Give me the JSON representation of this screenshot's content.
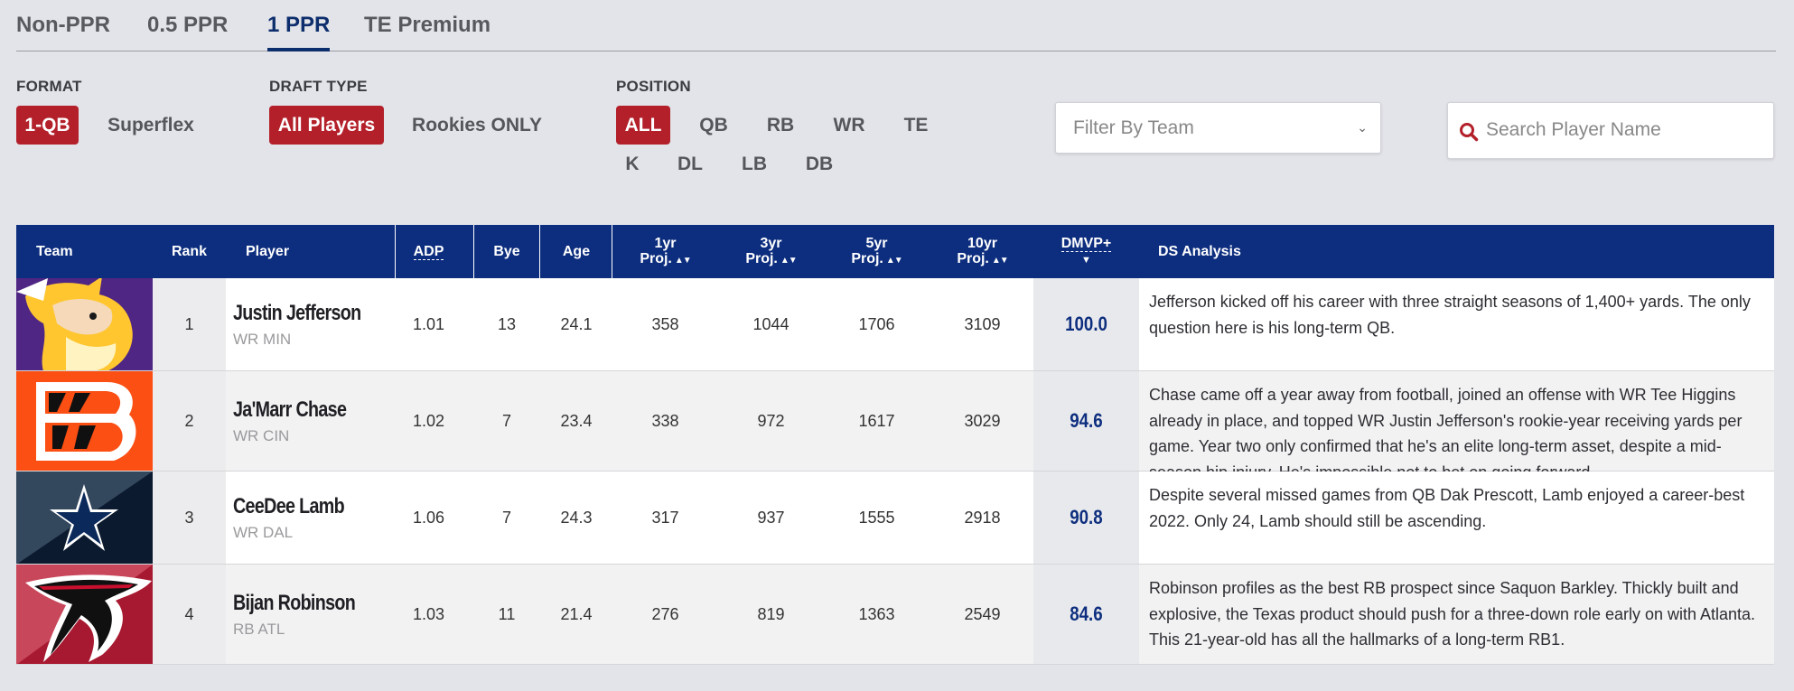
{
  "tabs": [
    {
      "label": "Non-PPR",
      "active": false
    },
    {
      "label": "0.5 PPR",
      "active": false
    },
    {
      "label": "1 PPR",
      "active": true
    },
    {
      "label": "TE Premium",
      "active": false
    }
  ],
  "filters": {
    "format": {
      "label": "FORMAT",
      "options": [
        "1-QB",
        "Superflex"
      ],
      "selected": "1-QB"
    },
    "draft_type": {
      "label": "DRAFT TYPE",
      "options": [
        "All Players",
        "Rookies ONLY"
      ],
      "selected": "All Players"
    },
    "position": {
      "label": "POSITION",
      "options": [
        "ALL",
        "QB",
        "RB",
        "WR",
        "TE",
        "K",
        "DL",
        "LB",
        "DB"
      ],
      "selected": "ALL"
    },
    "team_select": {
      "value": "Filter By Team"
    },
    "search": {
      "placeholder": "Search Player Name"
    }
  },
  "table": {
    "headers": {
      "team": "Team",
      "rank": "Rank",
      "player": "Player",
      "adp": "ADP",
      "bye": "Bye",
      "age": "Age",
      "proj1_top": "1yr",
      "proj1_bottom": "Proj.",
      "proj3_top": "3yr",
      "proj3_bottom": "Proj.",
      "proj5_top": "5yr",
      "proj5_bottom": "Proj.",
      "proj10_top": "10yr",
      "proj10_bottom": "Proj.",
      "dmvp": "DMVP+",
      "analysis": "DS Analysis"
    },
    "rows": [
      {
        "team_logo": "vikings-logo",
        "rank": "1",
        "name": "Justin Jefferson",
        "pos": "WR MIN",
        "adp": "1.01",
        "bye": "13",
        "age": "24.1",
        "proj1": "358",
        "proj3": "1044",
        "proj5": "1706",
        "proj10": "3109",
        "dmvp": "100.0",
        "analysis": "Jefferson kicked off his career with three straight seasons of 1,400+ yards. The only question here is his long-term QB."
      },
      {
        "team_logo": "bengals-logo",
        "rank": "2",
        "name": "Ja'Marr Chase",
        "pos": "WR CIN",
        "adp": "1.02",
        "bye": "7",
        "age": "23.4",
        "proj1": "338",
        "proj3": "972",
        "proj5": "1617",
        "proj10": "3029",
        "dmvp": "94.6",
        "analysis": "Chase came off a year away from football, joined an offense with WR Tee Higgins already in place, and topped WR Justin Jefferson's rookie-year receiving yards per game. Year two only confirmed that he's an elite long-term asset, despite a mid-season hip injury. He's impossible not to bet on going forward."
      },
      {
        "team_logo": "cowboys-logo",
        "rank": "3",
        "name": "CeeDee Lamb",
        "pos": "WR DAL",
        "adp": "1.06",
        "bye": "7",
        "age": "24.3",
        "proj1": "317",
        "proj3": "937",
        "proj5": "1555",
        "proj10": "2918",
        "dmvp": "90.8",
        "analysis": "Despite several missed games from QB Dak Prescott, Lamb enjoyed a career-best 2022. Only 24, Lamb should still be ascending."
      },
      {
        "team_logo": "falcons-logo",
        "rank": "4",
        "name": "Bijan Robinson",
        "pos": "RB ATL",
        "adp": "1.03",
        "bye": "11",
        "age": "21.4",
        "proj1": "276",
        "proj3": "819",
        "proj5": "1363",
        "proj10": "2549",
        "dmvp": "84.6",
        "analysis": "Robinson profiles as the best RB prospect since Saquon Barkley. Thickly built and explosive, the Texas product should push for a three-down role early on with Atlanta. This 21-year-old has all the hallmarks of a long-term RB1."
      }
    ]
  },
  "colors": {
    "header_bg": "#0d2e7e",
    "accent_red": "#b3202a",
    "active_tab": "#0d2e6c"
  }
}
